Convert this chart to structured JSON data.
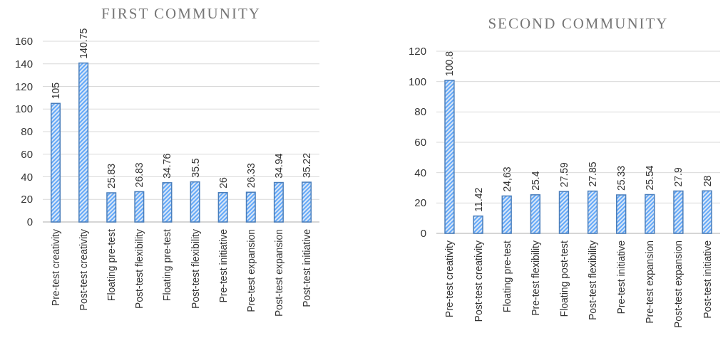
{
  "chart_data": [
    {
      "type": "bar",
      "title": "FIRST COMMUNITY",
      "categories": [
        "Pre-test creativity",
        "Post-test creativity",
        "Floating pre-test",
        "Post-test flexibility",
        "Floating pre-test",
        "Post-test flexibility",
        "Pre-test initiative",
        "Pre-test expansion",
        "Post-test expansion",
        "Post-test initiative"
      ],
      "values": [
        105,
        140.75,
        25.83,
        26.83,
        34.76,
        35.5,
        26,
        26.33,
        34.94,
        35.22
      ],
      "color": "#4a7ebb",
      "ylim": [
        0,
        160
      ],
      "yticks": [
        0,
        20,
        40,
        60,
        80,
        100,
        120,
        140,
        160
      ],
      "grid": "y",
      "data_labels": true
    },
    {
      "type": "bar",
      "title": "SECOND COMMUNITY",
      "categories": [
        "Pre-test creativity",
        "Post-test creativity",
        "Floating pre-test",
        "Pre-test flexibility",
        "Floating post-test",
        "Post-test flexibility",
        "Pre-test initiative",
        "Pre-test expansion",
        "Post-test expansion",
        "Post-test initiative"
      ],
      "values": [
        100.8,
        11.42,
        24.63,
        25.4,
        27.59,
        27.85,
        25.33,
        25.54,
        27.9,
        28
      ],
      "value_labels": [
        "100.8",
        "11.42",
        "24,63",
        "25.4",
        "27.59",
        "27.85",
        "25.33",
        "25.54",
        "27.9",
        "28"
      ],
      "color": "#4a7ebb",
      "ylim": [
        0,
        120
      ],
      "yticks": [
        0,
        20,
        40,
        60,
        80,
        100,
        120
      ],
      "grid": "y"
    }
  ]
}
